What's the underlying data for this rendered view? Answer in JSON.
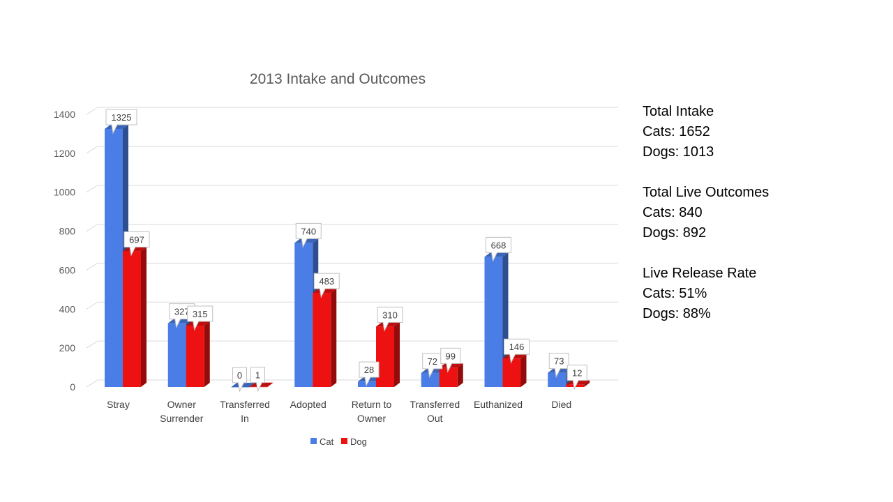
{
  "chart_data": {
    "type": "bar",
    "title": "2013 Intake and Outcomes",
    "categories": [
      [
        "Stray"
      ],
      [
        "Owner",
        "Surrender"
      ],
      [
        "Transferred",
        "In"
      ],
      [
        "Adopted"
      ],
      [
        "Return to",
        "Owner"
      ],
      [
        "Transferred",
        "Out"
      ],
      [
        "Euthanized"
      ],
      [
        "Died"
      ]
    ],
    "series": [
      {
        "name": "Cat",
        "color": "#4a7ee6",
        "values": [
          1325,
          327,
          0,
          740,
          28,
          72,
          668,
          73
        ]
      },
      {
        "name": "Dog",
        "color": "#ee1111",
        "values": [
          697,
          315,
          1,
          483,
          310,
          99,
          146,
          12
        ]
      }
    ],
    "yticks": [
      0,
      200,
      400,
      600,
      800,
      1000,
      1200,
      1400
    ],
    "ylim": [
      0,
      1400
    ],
    "grid": true,
    "legend_position": "bottom",
    "data_labels": true
  },
  "stats": {
    "intake": {
      "heading": "Total Intake",
      "cats": "Cats: 1652",
      "dogs": "Dogs: 1013"
    },
    "live_outcomes": {
      "heading": "Total Live Outcomes",
      "cats": "Cats: 840",
      "dogs": "Dogs: 892"
    },
    "release_rate": {
      "heading": "Live Release Rate",
      "cats": "Cats: 51%",
      "dogs": "Dogs: 88%"
    }
  }
}
